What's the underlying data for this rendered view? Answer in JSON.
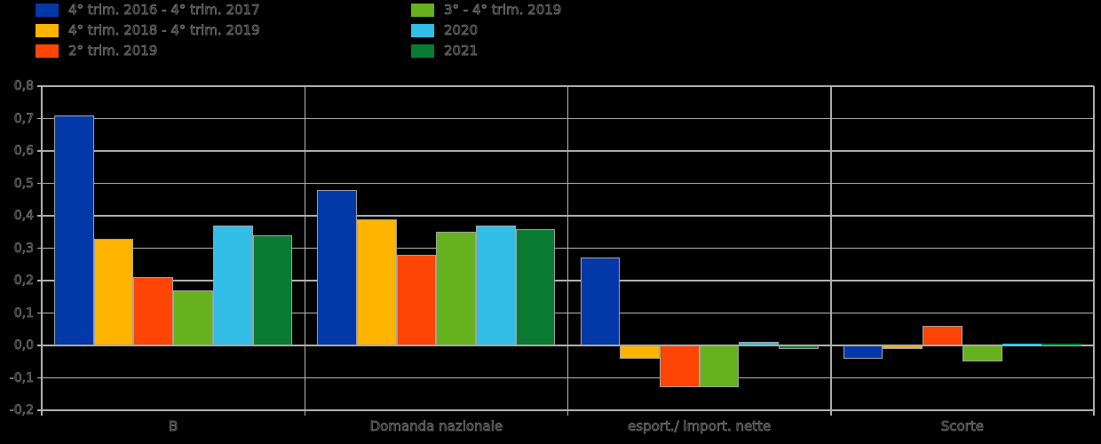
{
  "chart_data": {
    "type": "bar",
    "title": "",
    "categories": [
      "B",
      "Domanda nazionale",
      "esport./ import. nette",
      "Scorte"
    ],
    "series": [
      {
        "name": "4° trim. 2016 - 4° trim. 2017",
        "color": "#0338a8",
        "values": [
          0.71,
          0.48,
          0.27,
          -0.04
        ]
      },
      {
        "name": "4° trim. 2018 - 4° trim. 2019",
        "color": "#ffb400",
        "values": [
          0.33,
          0.39,
          -0.04,
          -0.01
        ]
      },
      {
        "name": "2° trim. 2019",
        "color": "#ff4506",
        "values": [
          0.21,
          0.28,
          -0.13,
          0.06
        ]
      },
      {
        "name": "3° - 4° trim. 2019",
        "color": "#66b21e",
        "values": [
          0.17,
          0.35,
          -0.13,
          -0.05
        ]
      },
      {
        "name": "2020",
        "color": "#33bee8",
        "values": [
          0.37,
          0.37,
          0.01,
          0.005
        ]
      },
      {
        "name": "2021",
        "color": "#0a7b33",
        "values": [
          0.34,
          0.36,
          -0.01,
          0.005
        ]
      }
    ],
    "ylim": [
      -0.2,
      0.8
    ],
    "ytick_step": 0.1,
    "ytick_labels": [
      "0,8",
      "0,7",
      "0,6",
      "0,5",
      "0,4",
      "0,3",
      "0,2",
      "0,1",
      "0,0",
      "-0,1",
      "-0,2"
    ],
    "grid": true,
    "legend_position": "top-left, two columns",
    "xlabel": "",
    "ylabel": ""
  },
  "colors": {
    "background": "#000000",
    "grid": "#b0b0b0",
    "bar_outline": "#a3a3a3",
    "ghost_text": "#828282"
  }
}
